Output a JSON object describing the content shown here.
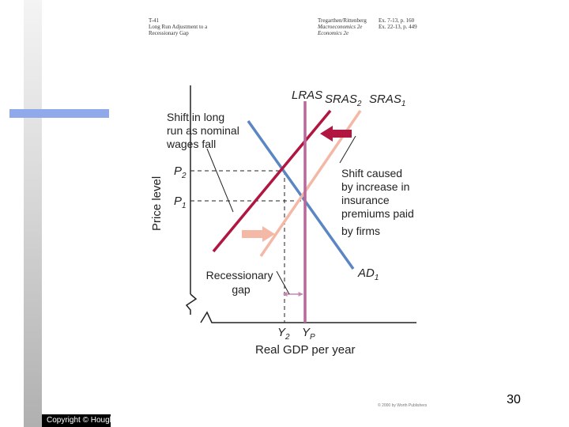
{
  "header": {
    "left": [
      "T-41",
      "Long Run Adjustment to a",
      "Recessionary Gap"
    ],
    "right_col1": [
      "Tregarthen/Rittenberg",
      "Macroeconomics 2e",
      "Economics 2e"
    ],
    "right_col2": [
      "",
      "Ex. 7-13, p. 160",
      "Ex. 22-13, p. 449"
    ]
  },
  "diagram": {
    "ylabel": "Price level",
    "xlabel": "Real GDP per year",
    "curves": {
      "lras": "LRAS",
      "sras2": "SRAS",
      "sras2_sub": "2",
      "sras1": "SRAS",
      "sras1_sub": "1",
      "ad": "AD",
      "ad_sub": "1"
    },
    "prices": {
      "p2": "P",
      "p2_sub": "2",
      "p1": "P",
      "p1_sub": "1"
    },
    "outputs": {
      "y2": "Y",
      "y2_sub": "2",
      "yp": "Y",
      "yp_sub": "P"
    },
    "annotations": {
      "shift_long_run": [
        "Shift in long",
        "run as nominal",
        "wages fall"
      ],
      "shift_caused": [
        "Shift caused",
        "by increase in",
        "insurance",
        "premiums paid",
        "by firms"
      ],
      "recessionary_gap": [
        "Recessionary",
        "gap"
      ]
    },
    "colors": {
      "ad": "#5b86c4",
      "sras2": "#b0163f",
      "sras1": "#f4b9a6",
      "lras": "#b7699b",
      "shift_arrow_dark": "#b0163f",
      "shift_arrow_light": "#f4b9a6"
    }
  },
  "footer": {
    "page_number": "30",
    "copyright": "Copyright © Hough",
    "credit": "© 2000 by Worth Publishers"
  }
}
